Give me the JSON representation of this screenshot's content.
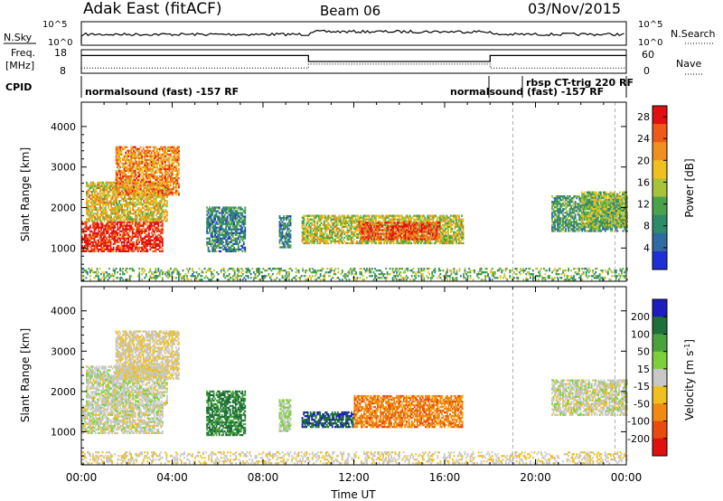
{
  "header": {
    "radar": "Adak East (fitACF)",
    "beam": "Beam 06",
    "date": "03/Nov/2015"
  },
  "aux_panels": {
    "nsky_label": "N.Sky",
    "nsky_ticks": [
      "10^5",
      "10^0"
    ],
    "nsearch_label": "N.Search",
    "nsearch_ticks": [
      "10^5",
      "10^0"
    ],
    "freq_label_1": "Freq.",
    "freq_label_2": "[MHz]",
    "freq_ticks": [
      "18",
      "8"
    ],
    "nave_label": "Nave",
    "nave_ticks": [
      "60",
      "0"
    ],
    "cpid_label": "CPID",
    "cpid_entries": [
      {
        "text": "normalsound (fast) -157 RF",
        "start_hour": 0
      },
      {
        "text": "normalsound (fast) -157 RF",
        "start_hour": 18
      },
      {
        "text": "rbsp CT-trig 220 RF",
        "start_hour": 20.5
      }
    ],
    "freq_profile": [
      [
        0,
        16
      ],
      [
        0.3,
        16
      ],
      [
        10,
        16
      ],
      [
        10,
        13
      ],
      [
        18,
        13
      ],
      [
        18,
        16
      ],
      [
        23,
        16
      ],
      [
        24,
        16
      ]
    ],
    "nave_profile": [
      [
        0,
        10
      ],
      [
        0.3,
        10
      ],
      [
        10,
        10
      ],
      [
        10,
        22
      ],
      [
        18,
        22
      ],
      [
        18,
        10
      ],
      [
        24,
        10
      ]
    ]
  },
  "chart_data": [
    {
      "type": "heatmap",
      "name": "power",
      "xlabel": "",
      "ylabel": "Slant Range [km]",
      "yticks": [
        "1000",
        "2000",
        "3000",
        "4000"
      ],
      "ylim": [
        180,
        4600
      ],
      "xlim": [
        0,
        24
      ],
      "colorbar_label": "Power [dB]",
      "colorbar_ticks": [
        "4",
        "8",
        "12",
        "16",
        "20",
        "24",
        "28"
      ],
      "colorbar_range": [
        0,
        30
      ],
      "colors": [
        "#1f2fd6",
        "#2f6aa0",
        "#2f8a6a",
        "#4aa24a",
        "#a8c23a",
        "#f0c020",
        "#f09020",
        "#f05a18",
        "#e01010"
      ],
      "regions": [
        {
          "t": [
            0.0,
            3.6
          ],
          "r": [
            900,
            1650
          ],
          "v": 28
        },
        {
          "t": [
            0.2,
            3.8
          ],
          "r": [
            1650,
            2600
          ],
          "v": 18
        },
        {
          "t": [
            1.5,
            4.3
          ],
          "r": [
            2300,
            3500
          ],
          "v": 22
        },
        {
          "t": [
            5.5,
            7.2
          ],
          "r": [
            900,
            2000
          ],
          "v": 8
        },
        {
          "t": [
            8.7,
            9.2
          ],
          "r": [
            1000,
            1800
          ],
          "v": 8
        },
        {
          "t": [
            9.7,
            16.8
          ],
          "r": [
            1100,
            1800
          ],
          "v": 16
        },
        {
          "t": [
            12.2,
            15.8
          ],
          "r": [
            1200,
            1650
          ],
          "v": 26
        },
        {
          "t": [
            20.7,
            24.0
          ],
          "r": [
            1400,
            2300
          ],
          "v": 10
        },
        {
          "t": [
            22.0,
            24.0
          ],
          "r": [
            1500,
            2400
          ],
          "v": 14
        },
        {
          "t": [
            0.0,
            24.0
          ],
          "r": [
            200,
            500
          ],
          "v": 12
        }
      ]
    },
    {
      "type": "heatmap",
      "name": "velocity",
      "xlabel": "Time UT",
      "ylabel": "Slant Range [km]",
      "yticks": [
        "1000",
        "2000",
        "3000",
        "4000"
      ],
      "ylim": [
        180,
        4600
      ],
      "xlim": [
        0,
        24
      ],
      "xticks": [
        "00:00",
        "04:00",
        "08:00",
        "12:00",
        "16:00",
        "20:00",
        "00:00"
      ],
      "colorbar_label": "Velocity [m s^-1]",
      "colorbar_ticks": [
        "200",
        "100",
        "50",
        "15",
        "-15",
        "-50",
        "-100",
        "-200"
      ],
      "colorbar_range": [
        -250,
        250
      ],
      "colors": [
        "#1c1cbf",
        "#1f6e3c",
        "#4aa23c",
        "#7cd03c",
        "#c8c8c8",
        "#f0c020",
        "#f08a10",
        "#e84a10",
        "#e01010"
      ],
      "regions": [
        {
          "t": [
            0.0,
            3.6
          ],
          "r": [
            950,
            1650
          ],
          "v": 0
        },
        {
          "t": [
            0.2,
            3.8
          ],
          "r": [
            1650,
            2600
          ],
          "v": 5
        },
        {
          "t": [
            1.5,
            4.3
          ],
          "r": [
            2300,
            3500
          ],
          "v": -20
        },
        {
          "t": [
            5.5,
            7.2
          ],
          "r": [
            900,
            2000
          ],
          "v": 150
        },
        {
          "t": [
            8.7,
            9.2
          ],
          "r": [
            1000,
            1800
          ],
          "v": 30
        },
        {
          "t": [
            9.7,
            12.0
          ],
          "r": [
            1100,
            1500
          ],
          "v": 180
        },
        {
          "t": [
            12.0,
            16.8
          ],
          "r": [
            1100,
            1900
          ],
          "v": -120
        },
        {
          "t": [
            20.7,
            24.0
          ],
          "r": [
            1400,
            2300
          ],
          "v": 0
        },
        {
          "t": [
            0.0,
            24.0
          ],
          "r": [
            200,
            500
          ],
          "v": -20
        }
      ]
    }
  ]
}
